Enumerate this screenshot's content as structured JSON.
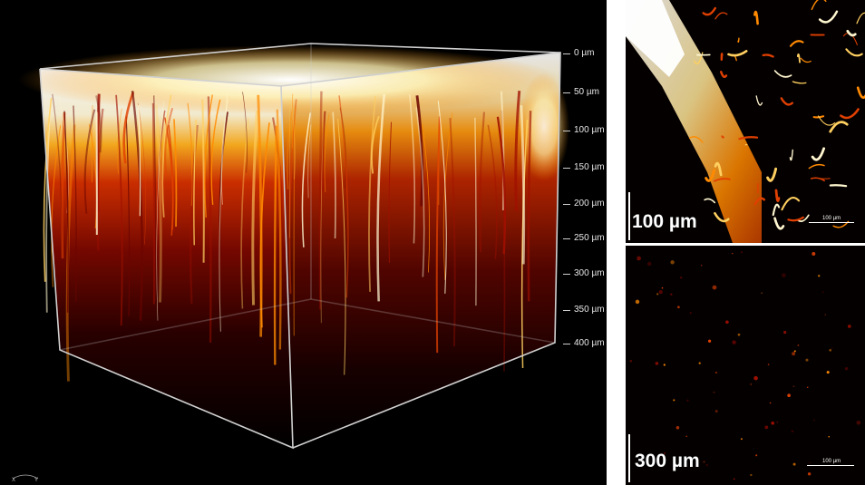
{
  "volume": {
    "depth_unit_labels": [
      "0 µm",
      "50 µm",
      "100 µm",
      "150 µm",
      "200 µm",
      "250 µm",
      "300 µm",
      "350 µm",
      "400 µm"
    ],
    "axis_labels": {
      "x": "X",
      "y": "Y"
    },
    "colormap": [
      "#000000",
      "#3a0000",
      "#8a0a00",
      "#d43000",
      "#ff8a00",
      "#ffe070",
      "#ffffff"
    ]
  },
  "slices": [
    {
      "caption": "100 µm",
      "scalebar_label": "100 µm"
    },
    {
      "caption": "300 µm",
      "scalebar_label": "100 µm"
    }
  ]
}
